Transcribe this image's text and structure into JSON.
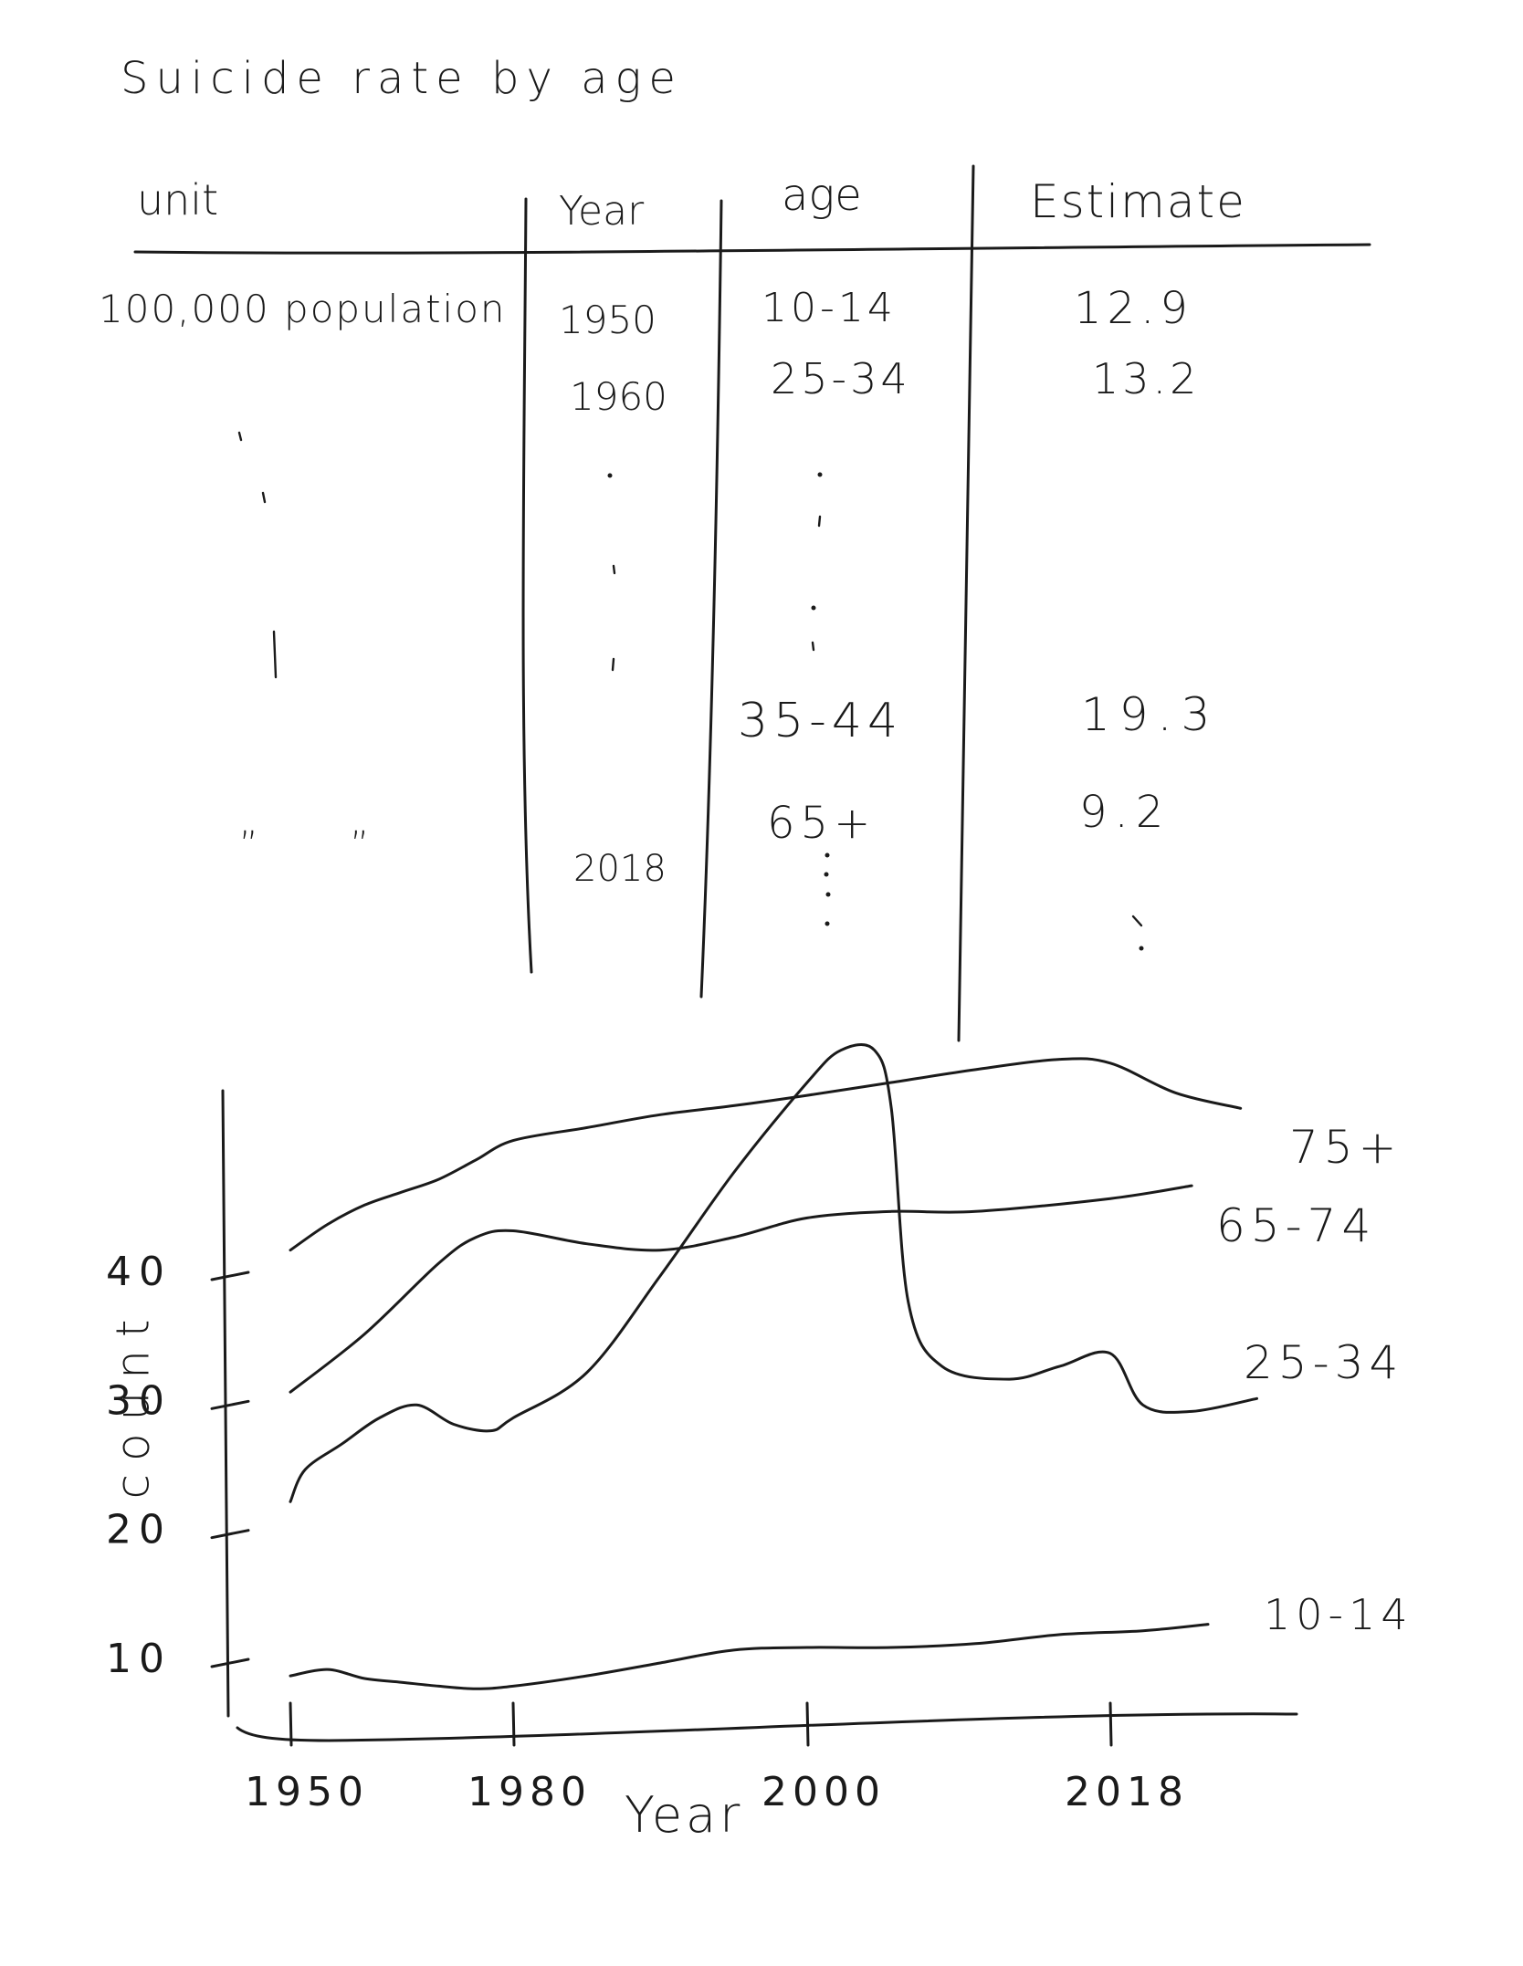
{
  "title": "Suicide rate by age",
  "table": {
    "columns": [
      "unit",
      "Year",
      "age",
      "Estimate"
    ],
    "rows": [
      {
        "unit": "100,000 population",
        "year": "1950",
        "age": "10-14",
        "estimate": "12.9"
      },
      {
        "unit": "",
        "year": "1960",
        "age": "25-34",
        "estimate": "13.2"
      },
      {
        "unit": "",
        "year": "",
        "age": "35-44",
        "estimate": "19.3"
      },
      {
        "unit": "” ”",
        "year": "2018",
        "age": "65+",
        "estimate": "9.2"
      }
    ]
  },
  "chart_data": {
    "type": "line",
    "xlabel": "Year",
    "ylabel": "count",
    "x_ticks": [
      1950,
      1980,
      2000,
      2018
    ],
    "y_ticks": [
      10,
      20,
      30,
      40
    ],
    "series": [
      {
        "name": "75+",
        "x": [
          1950,
          1955,
          1960,
          1965,
          1970,
          1975,
          1980,
          1985,
          1990,
          1995,
          2000,
          2005,
          2010,
          2015,
          2018,
          2022,
          2026
        ],
        "y": [
          42,
          44,
          45.5,
          46.5,
          47.5,
          49,
          50.5,
          51.5,
          52.5,
          53.2,
          54,
          55,
          56,
          56.8,
          56.5,
          54.2,
          53
        ]
      },
      {
        "name": "65-74",
        "x": [
          1950,
          1960,
          1970,
          1975,
          1980,
          1985,
          1990,
          1995,
          2000,
          2005,
          2010,
          2018,
          2023
        ],
        "y": [
          31,
          35.5,
          41,
          43,
          43.5,
          42.5,
          42,
          43,
          44.5,
          45,
          45,
          46,
          47
        ]
      },
      {
        "name": "25-34",
        "x": [
          1950,
          1952,
          1957,
          1962,
          1967,
          1972,
          1977,
          1980,
          1985,
          1990,
          1995,
          2000,
          2002,
          2004,
          2005,
          2006,
          2008,
          2012,
          2015,
          2018,
          2020,
          2023,
          2027
        ],
        "y": [
          22.5,
          25,
          27,
          29,
          30,
          28.5,
          28,
          29,
          32.5,
          40,
          48,
          55,
          57.5,
          57.5,
          53,
          38,
          33,
          32,
          33,
          34,
          30,
          29.5,
          30.5
        ]
      },
      {
        "name": "10-14",
        "x": [
          1950,
          1955,
          1960,
          1965,
          1970,
          1975,
          1980,
          1985,
          1990,
          1995,
          2000,
          2005,
          2010,
          2015,
          2020,
          2024
        ],
        "y": [
          9,
          9.5,
          8.8,
          8.5,
          8.2,
          8,
          8.2,
          9,
          10,
          11,
          11.2,
          11.2,
          11.5,
          12.2,
          12.5,
          13
        ]
      }
    ]
  }
}
